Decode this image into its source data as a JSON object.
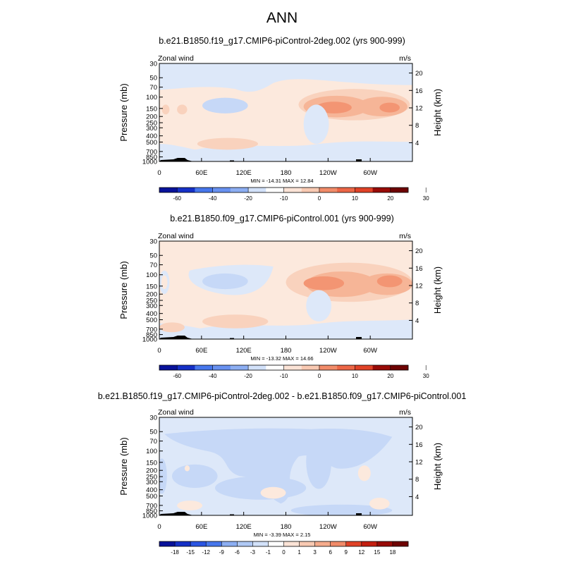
{
  "page": {
    "title": "ANN"
  },
  "colors": {
    "pos_levels": [
      "#fce9dd",
      "#f9d2bd",
      "#f6b597",
      "#f39573",
      "#ef7351"
    ],
    "neg_levels": [
      "#dde8f9",
      "#c6d8f7",
      "#a7c2f2",
      "#88a8ec"
    ],
    "colorbar_full": [
      "#08129a",
      "#1530c6",
      "#2b55e2",
      "#4777ec",
      "#6891f0",
      "#8caef2",
      "#b0c9f5",
      "#d2e1f9",
      "#ffffff",
      "#fbe3d6",
      "#f8c9b2",
      "#f5ab8c",
      "#f18b69",
      "#ec6646",
      "#e04227",
      "#c41f10",
      "#980b07",
      "#6e0303"
    ]
  },
  "panels": [
    {
      "subtitle": "b.e21.B1850.f19_g17.CMIP6-piControl-2deg.002 (yrs 900-999)",
      "left_label": "Zonal wind",
      "right_label": "m/s",
      "stats": "MIN = -14.31   MAX =  12.84"
    },
    {
      "subtitle": "b.e21.B1850.f09_g17.CMIP6-piControl.001 (yrs 900-999)",
      "left_label": "Zonal wind",
      "right_label": "m/s",
      "stats": "MIN = -13.32   MAX =  14.66"
    },
    {
      "subtitle": "b.e21.B1850.f19_g17.CMIP6-piControl-2deg.002 - b.e21.B1850.f09_g17.CMIP6-piControl.001",
      "left_label": "Zonal wind",
      "right_label": "m/s",
      "stats": "MIN =  -3.39   MAX =   2.15"
    }
  ],
  "chart_data": [
    {
      "type": "heatmap",
      "title": "b.e21.B1850.f19_g17.CMIP6-piControl-2deg.002 (yrs 900-999)",
      "variable": "Zonal wind",
      "units": "m/s",
      "x_ticks": [
        "0",
        "60E",
        "120E",
        "180",
        "120W",
        "60W"
      ],
      "x_range": [
        0,
        360
      ],
      "y_ticks": [
        "30",
        "50",
        "70",
        "100",
        "150",
        "200",
        "250",
        "300",
        "400",
        "500",
        "700",
        "850",
        "1000"
      ],
      "y_values": [
        30,
        50,
        70,
        100,
        150,
        200,
        250,
        300,
        400,
        500,
        700,
        850,
        1000
      ],
      "ylim": [
        1000,
        30
      ],
      "ylabel": "Pressure (mb)",
      "y2_ticks": [
        "4",
        "8",
        "12",
        "16",
        "20"
      ],
      "y2_values": [
        4,
        8,
        12,
        16,
        20
      ],
      "y2label": "Height (km)",
      "colorbar_levels": [
        "-60",
        "-40",
        "-20",
        "-10",
        "0",
        "10",
        "20",
        "30"
      ],
      "min": -14.31,
      "max": 12.84
    },
    {
      "type": "heatmap",
      "title": "b.e21.B1850.f09_g17.CMIP6-piControl.001 (yrs 900-999)",
      "variable": "Zonal wind",
      "units": "m/s",
      "x_ticks": [
        "0",
        "60E",
        "120E",
        "180",
        "120W",
        "60W"
      ],
      "x_range": [
        0,
        360
      ],
      "y_ticks": [
        "30",
        "50",
        "70",
        "100",
        "150",
        "200",
        "250",
        "300",
        "400",
        "500",
        "700",
        "850",
        "1000"
      ],
      "y_values": [
        30,
        50,
        70,
        100,
        150,
        200,
        250,
        300,
        400,
        500,
        700,
        850,
        1000
      ],
      "ylim": [
        1000,
        30
      ],
      "ylabel": "Pressure (mb)",
      "y2_ticks": [
        "4",
        "8",
        "12",
        "16",
        "20"
      ],
      "y2_values": [
        4,
        8,
        12,
        16,
        20
      ],
      "y2label": "Height (km)",
      "colorbar_levels": [
        "-60",
        "-40",
        "-20",
        "-10",
        "0",
        "10",
        "20",
        "30"
      ],
      "min": -13.32,
      "max": 14.66
    },
    {
      "type": "heatmap",
      "title": "b.e21.B1850.f19_g17.CMIP6-piControl-2deg.002 - b.e21.B1850.f09_g17.CMIP6-piControl.001",
      "variable": "Zonal wind",
      "units": "m/s",
      "x_ticks": [
        "0",
        "60E",
        "120E",
        "180",
        "120W",
        "60W"
      ],
      "x_range": [
        0,
        360
      ],
      "y_ticks": [
        "30",
        "50",
        "70",
        "100",
        "150",
        "200",
        "250",
        "300",
        "400",
        "500",
        "700",
        "850",
        "1000"
      ],
      "y_values": [
        30,
        50,
        70,
        100,
        150,
        200,
        250,
        300,
        400,
        500,
        700,
        850,
        1000
      ],
      "ylim": [
        1000,
        30
      ],
      "ylabel": "Pressure (mb)",
      "y2_ticks": [
        "4",
        "8",
        "12",
        "16",
        "20"
      ],
      "y2_values": [
        4,
        8,
        12,
        16,
        20
      ],
      "y2label": "Height (km)",
      "colorbar_levels": [
        "-18",
        "-15",
        "-12",
        "-9",
        "-6",
        "-3",
        "-1",
        "0",
        "1",
        "3",
        "6",
        "9",
        "12",
        "15",
        "18"
      ],
      "min": -3.39,
      "max": 2.15
    }
  ]
}
